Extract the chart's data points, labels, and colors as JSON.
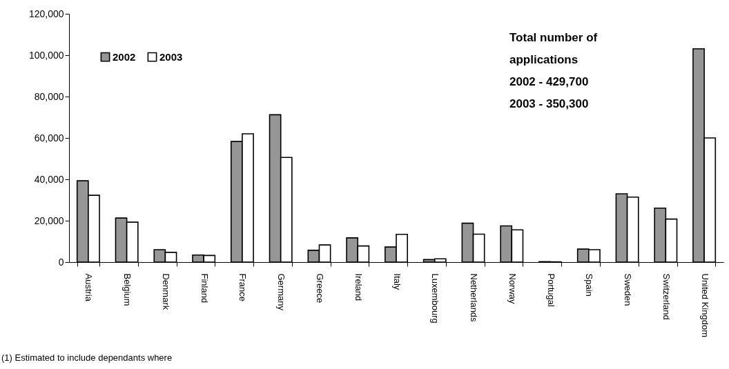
{
  "chart_data": {
    "type": "bar",
    "categories": [
      "Austria",
      "Belgium",
      "Denmark",
      "Finland",
      "France",
      "Germany",
      "Greece",
      "Ireland",
      "Italy",
      "Luxembourg",
      "Netherlands",
      "Norway",
      "Portugal",
      "Spain",
      "Sweden",
      "Switzerland",
      "United Kingdom"
    ],
    "series": [
      {
        "name": "2002",
        "color": "#969696",
        "values": [
          39300,
          21300,
          6000,
          3400,
          58300,
          71200,
          5700,
          11700,
          7300,
          1200,
          18800,
          17500,
          200,
          6300,
          33000,
          26100,
          103100
        ]
      },
      {
        "name": "2003",
        "color": "#ffffff",
        "values": [
          32300,
          19300,
          4700,
          3200,
          62000,
          50600,
          8300,
          7800,
          13400,
          1600,
          13500,
          15600,
          100,
          6000,
          31400,
          20800,
          60000
        ]
      }
    ],
    "ylim": [
      0,
      120000
    ],
    "yticks": [
      0,
      {
        "value": 20000,
        "label": "20,000"
      },
      {
        "value": 40000,
        "label": "40,000"
      },
      {
        "value": 60000,
        "label": "60,000"
      },
      {
        "value": 80000,
        "label": "80,000"
      },
      {
        "value": 100000,
        "label": "100,000"
      },
      {
        "value": 120000,
        "label": "120,000"
      }
    ],
    "grid": false,
    "legend": "top left",
    "annotations": [
      "Total number of",
      "applications",
      "2002 - 429,700",
      "2003 - 350,300",
      "(1) Estimated to include dependants where"
    ]
  }
}
